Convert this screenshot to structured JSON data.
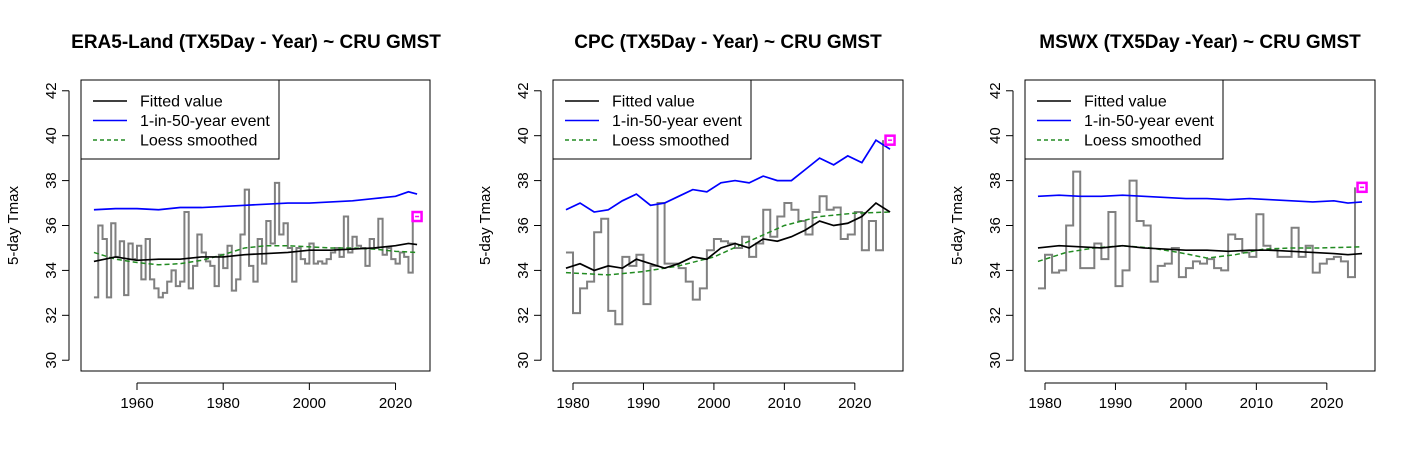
{
  "chart_data": [
    {
      "type": "line",
      "title": "ERA5-Land (TX5Day - Year) ~ CRU GMST",
      "xlabel": "",
      "ylabel": "5-day Tmax",
      "xlim": [
        1950,
        2025
      ],
      "ylim": [
        30,
        42
      ],
      "x_ticks": [
        1960,
        1980,
        2000,
        2020
      ],
      "y_ticks": [
        30,
        32,
        34,
        36,
        38,
        40,
        42
      ],
      "legend": {
        "placement": "top-left",
        "entries": [
          "Fitted value",
          "1-in-50-year event",
          "Loess smoothed"
        ]
      },
      "grid": false,
      "observed": {
        "style": "step",
        "color": "#808080",
        "x": [
          1950,
          1951,
          1952,
          1953,
          1954,
          1955,
          1956,
          1957,
          1958,
          1959,
          1960,
          1961,
          1962,
          1963,
          1964,
          1965,
          1966,
          1967,
          1968,
          1969,
          1970,
          1971,
          1972,
          1973,
          1974,
          1975,
          1976,
          1977,
          1978,
          1979,
          1980,
          1981,
          1982,
          1983,
          1984,
          1985,
          1986,
          1987,
          1988,
          1989,
          1990,
          1991,
          1992,
          1993,
          1994,
          1995,
          1996,
          1997,
          1998,
          1999,
          2000,
          2001,
          2002,
          2003,
          2004,
          2005,
          2006,
          2007,
          2008,
          2009,
          2010,
          2011,
          2012,
          2013,
          2014,
          2015,
          2016,
          2017,
          2018,
          2019,
          2020,
          2021,
          2022,
          2023,
          2024
        ],
        "values": [
          32.8,
          36.0,
          35.4,
          32.8,
          36.1,
          34.6,
          35.3,
          32.9,
          35.2,
          34.5,
          35.1,
          33.6,
          35.4,
          33.6,
          33.2,
          32.8,
          33.0,
          33.5,
          34.0,
          33.3,
          33.5,
          36.6,
          33.2,
          34.2,
          35.6,
          34.8,
          34.4,
          34.2,
          33.3,
          34.7,
          34.1,
          35.1,
          33.1,
          33.6,
          35.6,
          37.6,
          34.2,
          33.5,
          35.4,
          34.3,
          36.2,
          35.2,
          37.9,
          35.6,
          36.1,
          35.0,
          33.5,
          35.0,
          34.5,
          34.3,
          35.2,
          34.3,
          34.4,
          34.3,
          34.5,
          34.8,
          35.0,
          34.6,
          36.4,
          34.8,
          35.5,
          35.1,
          35.0,
          34.2,
          35.4,
          35.0,
          36.3,
          34.7,
          35.0,
          34.5,
          34.3,
          34.8,
          34.6,
          33.9,
          36.4
        ]
      },
      "fitted": {
        "name": "Fitted value",
        "color": "#000000",
        "x": [
          1950,
          1955,
          1960,
          1965,
          1970,
          1975,
          1980,
          1985,
          1990,
          1995,
          2000,
          2005,
          2010,
          2015,
          2020,
          2023,
          2025
        ],
        "values": [
          34.4,
          34.6,
          34.45,
          34.5,
          34.5,
          34.6,
          34.6,
          34.7,
          34.75,
          34.8,
          34.9,
          34.9,
          34.95,
          35.0,
          35.1,
          35.2,
          35.15
        ]
      },
      "event_1in50": {
        "name": "1-in-50-year event",
        "color": "#0000ff",
        "x": [
          1950,
          1955,
          1960,
          1965,
          1970,
          1975,
          1980,
          1985,
          1990,
          1995,
          2000,
          2005,
          2010,
          2015,
          2020,
          2023,
          2025
        ],
        "values": [
          36.7,
          36.75,
          36.75,
          36.7,
          36.8,
          36.8,
          36.85,
          36.9,
          36.95,
          37.0,
          37.0,
          37.05,
          37.1,
          37.2,
          37.3,
          37.5,
          37.4
        ]
      },
      "loess": {
        "name": "Loess smoothed",
        "color": "#228b22",
        "x": [
          1950,
          1955,
          1960,
          1965,
          1970,
          1975,
          1980,
          1985,
          1990,
          1995,
          2000,
          2005,
          2010,
          2015,
          2020,
          2025
        ],
        "values": [
          34.8,
          34.5,
          34.35,
          34.25,
          34.3,
          34.45,
          34.7,
          35.0,
          35.1,
          35.1,
          35.05,
          35.0,
          35.0,
          34.95,
          34.85,
          34.8
        ]
      },
      "current_event": {
        "x": 2025,
        "value": 36.4,
        "color": "#ff00ff"
      }
    },
    {
      "type": "line",
      "title": "CPC (TX5Day - Year) ~ CRU GMST",
      "xlabel": "",
      "ylabel": "5-day Tmax",
      "xlim": [
        1979,
        2025
      ],
      "ylim": [
        30,
        42
      ],
      "x_ticks": [
        1980,
        1990,
        2000,
        2010,
        2020
      ],
      "y_ticks": [
        30,
        32,
        34,
        36,
        38,
        40,
        42
      ],
      "legend": {
        "placement": "top-left",
        "entries": [
          "Fitted value",
          "1-in-50-year event",
          "Loess smoothed"
        ]
      },
      "grid": false,
      "observed": {
        "style": "step",
        "color": "#808080",
        "x": [
          1979,
          1980,
          1981,
          1982,
          1983,
          1984,
          1985,
          1986,
          1987,
          1988,
          1989,
          1990,
          1991,
          1992,
          1993,
          1994,
          1995,
          1996,
          1997,
          1998,
          1999,
          2000,
          2001,
          2002,
          2003,
          2004,
          2005,
          2006,
          2007,
          2008,
          2009,
          2010,
          2011,
          2012,
          2013,
          2014,
          2015,
          2016,
          2017,
          2018,
          2019,
          2020,
          2021,
          2022,
          2023,
          2024
        ],
        "values": [
          34.8,
          32.1,
          33.2,
          33.5,
          35.7,
          36.3,
          32.2,
          31.6,
          34.6,
          34.2,
          34.7,
          32.5,
          34.2,
          37.0,
          34.3,
          34.3,
          34.1,
          33.5,
          32.7,
          33.2,
          34.9,
          35.4,
          35.3,
          35.2,
          35.0,
          35.5,
          34.6,
          35.2,
          36.7,
          35.5,
          36.4,
          37.0,
          36.7,
          36.2,
          35.6,
          36.6,
          37.3,
          36.7,
          36.8,
          35.4,
          35.6,
          36.6,
          34.9,
          36.2,
          34.9,
          39.8
        ]
      },
      "fitted": {
        "name": "Fitted value",
        "color": "#000000",
        "x": [
          1979,
          1981,
          1983,
          1985,
          1987,
          1989,
          1991,
          1993,
          1995,
          1997,
          1999,
          2001,
          2003,
          2005,
          2007,
          2009,
          2011,
          2013,
          2015,
          2017,
          2019,
          2021,
          2023,
          2025
        ],
        "values": [
          34.1,
          34.3,
          34.0,
          34.2,
          34.1,
          34.5,
          34.3,
          34.1,
          34.3,
          34.6,
          34.5,
          35.0,
          35.2,
          35.0,
          35.4,
          35.3,
          35.5,
          35.8,
          36.2,
          36.0,
          36.1,
          36.4,
          37.0,
          36.6
        ]
      },
      "event_1in50": {
        "name": "1-in-50-year event",
        "color": "#0000ff",
        "x": [
          1979,
          1981,
          1983,
          1985,
          1987,
          1989,
          1991,
          1993,
          1995,
          1997,
          1999,
          2001,
          2003,
          2005,
          2007,
          2009,
          2011,
          2013,
          2015,
          2017,
          2019,
          2021,
          2023,
          2025
        ],
        "values": [
          36.7,
          37.0,
          36.6,
          36.7,
          37.1,
          37.4,
          36.9,
          37.0,
          37.3,
          37.6,
          37.5,
          37.9,
          38.0,
          37.9,
          38.2,
          38.0,
          38.0,
          38.5,
          39.0,
          38.7,
          39.1,
          38.8,
          39.8,
          39.4
        ]
      },
      "loess": {
        "name": "Loess smoothed",
        "color": "#228b22",
        "x": [
          1979,
          1985,
          1990,
          1995,
          2000,
          2005,
          2010,
          2015,
          2020,
          2025
        ],
        "values": [
          33.9,
          33.8,
          33.95,
          34.2,
          34.6,
          35.3,
          36.0,
          36.4,
          36.55,
          36.6
        ]
      },
      "current_event": {
        "x": 2025,
        "value": 39.8,
        "color": "#ff00ff"
      }
    },
    {
      "type": "line",
      "title": "MSWX (TX5Day -Year) ~ CRU GMST",
      "xlabel": "",
      "ylabel": "5-day Tmax",
      "xlim": [
        1979,
        2025
      ],
      "ylim": [
        30,
        42
      ],
      "x_ticks": [
        1980,
        1990,
        2000,
        2010,
        2020
      ],
      "y_ticks": [
        30,
        32,
        34,
        36,
        38,
        40,
        42
      ],
      "legend": {
        "placement": "top-left",
        "entries": [
          "Fitted value",
          "1-in-50-year event",
          "Loess smoothed"
        ]
      },
      "grid": false,
      "observed": {
        "style": "step",
        "color": "#808080",
        "x": [
          1979,
          1980,
          1981,
          1982,
          1983,
          1984,
          1985,
          1986,
          1987,
          1988,
          1989,
          1990,
          1991,
          1992,
          1993,
          1994,
          1995,
          1996,
          1997,
          1998,
          1999,
          2000,
          2001,
          2002,
          2003,
          2004,
          2005,
          2006,
          2007,
          2008,
          2009,
          2010,
          2011,
          2012,
          2013,
          2014,
          2015,
          2016,
          2017,
          2018,
          2019,
          2020,
          2021,
          2022,
          2023,
          2024
        ],
        "values": [
          33.2,
          34.7,
          33.9,
          34.0,
          36.0,
          38.4,
          34.1,
          34.1,
          35.2,
          34.5,
          36.6,
          33.3,
          34.0,
          38.0,
          36.2,
          36.0,
          33.5,
          34.2,
          34.3,
          35.0,
          33.7,
          34.1,
          34.4,
          34.3,
          34.5,
          34.1,
          34.0,
          35.6,
          35.4,
          34.8,
          34.6,
          36.5,
          35.1,
          34.9,
          34.6,
          34.6,
          35.9,
          34.6,
          35.1,
          33.9,
          34.3,
          34.5,
          34.6,
          34.4,
          33.7,
          37.7
        ]
      },
      "fitted": {
        "name": "Fitted value",
        "color": "#000000",
        "x": [
          1979,
          1982,
          1985,
          1988,
          1991,
          1994,
          1997,
          2000,
          2003,
          2006,
          2009,
          2012,
          2015,
          2018,
          2021,
          2023,
          2025
        ],
        "values": [
          35.0,
          35.1,
          35.05,
          35.0,
          35.1,
          35.0,
          34.95,
          34.9,
          34.9,
          34.85,
          34.9,
          34.9,
          34.85,
          34.8,
          34.75,
          34.7,
          34.75
        ]
      },
      "event_1in50": {
        "name": "1-in-50-year event",
        "color": "#0000ff",
        "x": [
          1979,
          1982,
          1985,
          1988,
          1991,
          1994,
          1997,
          2000,
          2003,
          2006,
          2009,
          2012,
          2015,
          2018,
          2021,
          2023,
          2025
        ],
        "values": [
          37.3,
          37.35,
          37.3,
          37.3,
          37.35,
          37.3,
          37.25,
          37.2,
          37.2,
          37.15,
          37.2,
          37.15,
          37.1,
          37.05,
          37.1,
          37.0,
          37.05
        ]
      },
      "loess": {
        "name": "Loess smoothed",
        "color": "#228b22",
        "x": [
          1979,
          1983,
          1987,
          1991,
          1995,
          1999,
          2003,
          2007,
          2011,
          2015,
          2019,
          2025
        ],
        "values": [
          34.4,
          34.8,
          35.0,
          35.1,
          35.0,
          34.8,
          34.55,
          34.7,
          34.95,
          35.0,
          35.0,
          35.05
        ]
      },
      "current_event": {
        "x": 2025,
        "value": 37.7,
        "color": "#ff00ff"
      }
    }
  ]
}
